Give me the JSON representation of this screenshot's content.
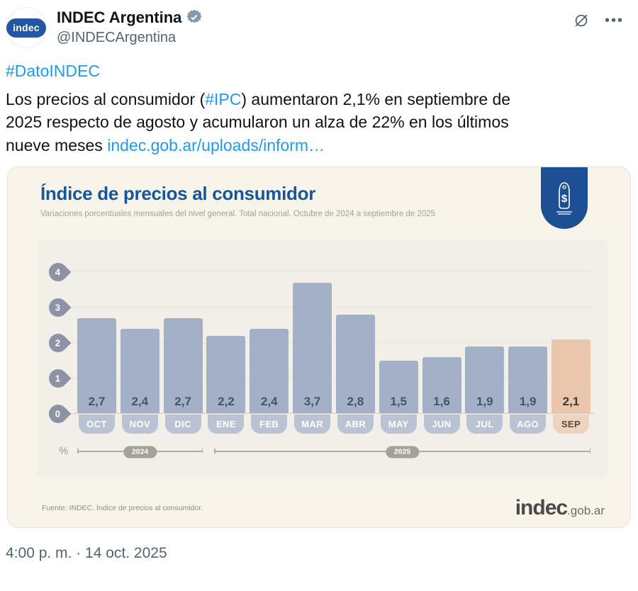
{
  "header": {
    "author": "INDEC Argentina",
    "handle": "@INDECArgentina",
    "avatar_text": "indec",
    "more_label": "•••"
  },
  "tweet": {
    "hashtag_line": "#DatoINDEC",
    "body": {
      "l1a": "Los precios al consumidor (",
      "l1b": "#IPC",
      "l1c": ") aumentaron 2,1% en septiembre de",
      "l2": "2025 respecto de agosto y acumularon un alza de 22% en los últimos",
      "l3a": "nueve meses ",
      "l3b": "indec.gob.ar/uploads/inform…"
    },
    "timestamp": "4:00 p. m. · 14 oct. 2025"
  },
  "chart_data": {
    "type": "bar",
    "title": "Índice de precios al consumidor",
    "subtitle": "Variaciones porcentuales mensuales del nivel general. Total nacional. Octubre de 2024 a septiembre de 2025",
    "categories": [
      "OCT",
      "NOV",
      "DIC",
      "ENE",
      "FEB",
      "MAR",
      "ABR",
      "MAY",
      "JUN",
      "JUL",
      "AGO",
      "SEP"
    ],
    "values": [
      2.7,
      2.4,
      2.7,
      2.2,
      2.4,
      3.7,
      2.8,
      1.5,
      1.6,
      1.9,
      1.9,
      2.1
    ],
    "value_labels": [
      "2,7",
      "2,4",
      "2,7",
      "2,2",
      "2,4",
      "3,7",
      "2,8",
      "1,5",
      "1,6",
      "1,9",
      "1,9",
      "2,1"
    ],
    "highlight_index": 11,
    "unit_label": "%",
    "ylim": [
      0,
      4
    ],
    "yticks": [
      0,
      1,
      2,
      3,
      4
    ],
    "grid": true,
    "year_groups": [
      {
        "label": "2024",
        "span": 3
      },
      {
        "label": "2025",
        "span": 9
      }
    ],
    "colors": {
      "bar": "#a3b0c6",
      "bar_tab": "#b9c3d4",
      "highlight": "#e9c6ac",
      "highlight_tab": "#eed3bf",
      "pin": "#8d92a6",
      "title_blue": "#15569f",
      "badge_blue": "#1d4f94"
    },
    "source": "Fuente: INDEC. Índice de precios al consumidor.",
    "brand": "indec",
    "brand_suffix": ".gob.ar"
  }
}
